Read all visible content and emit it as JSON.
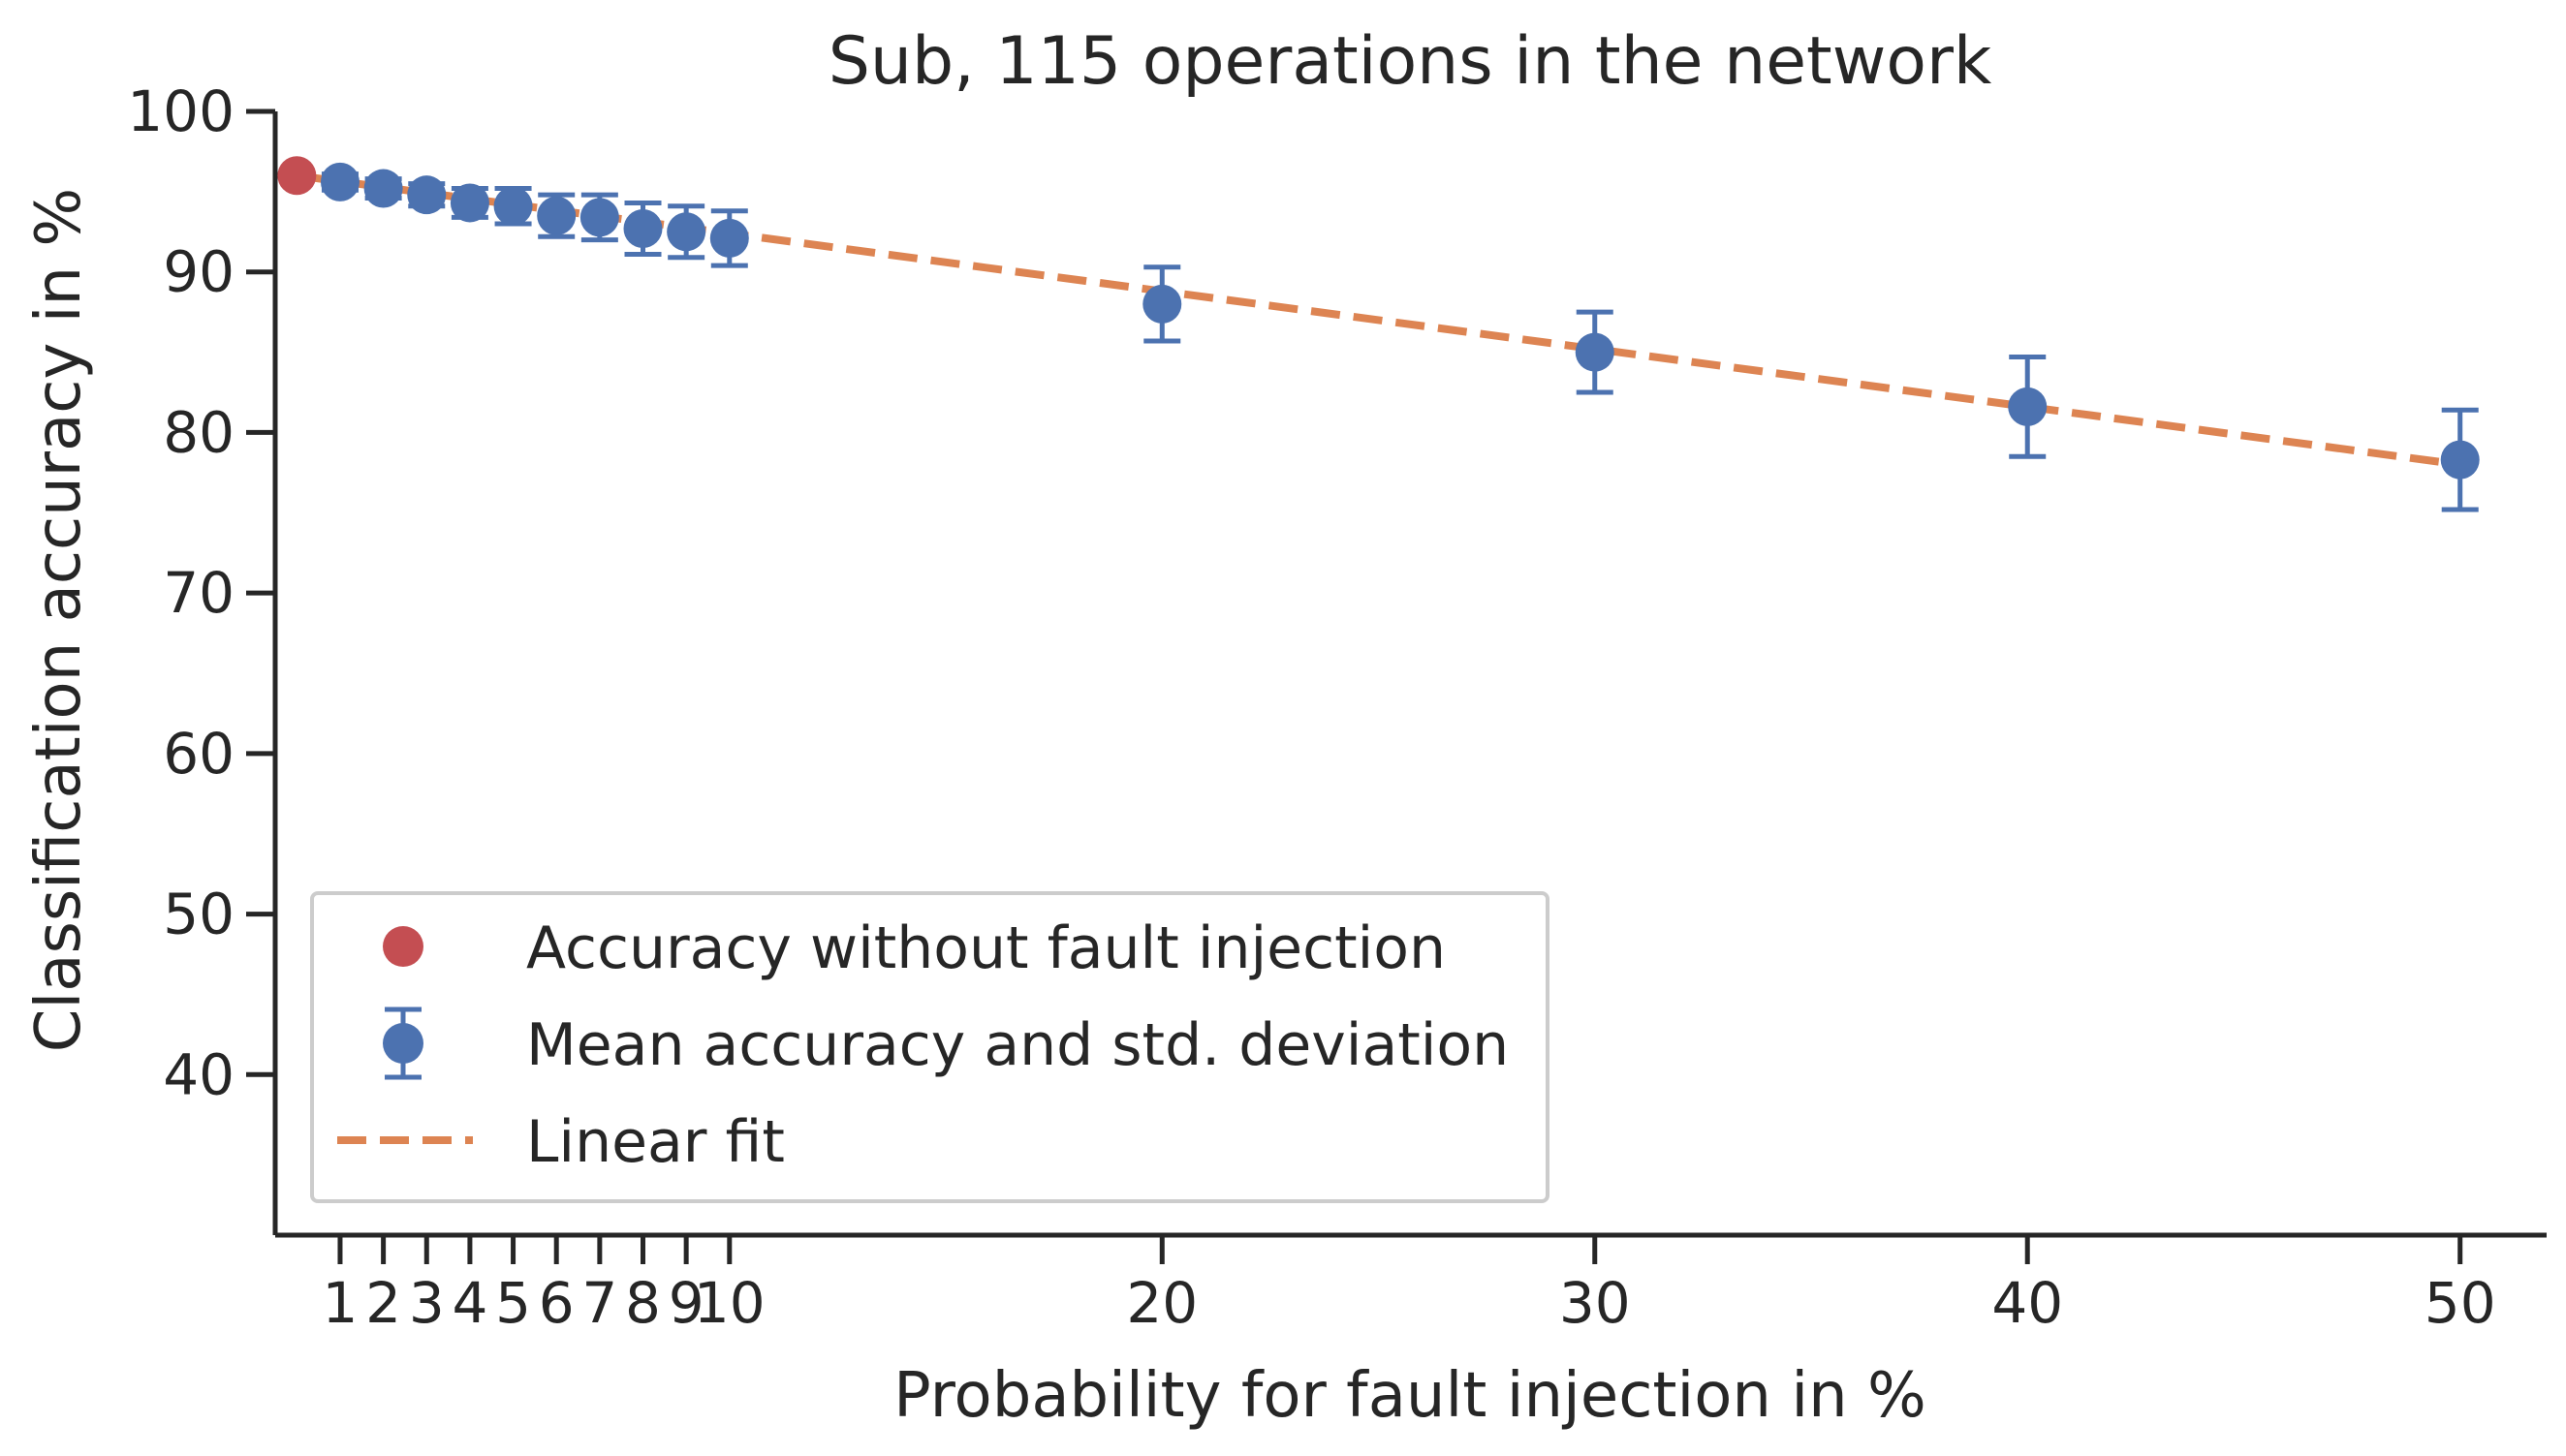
{
  "chart_data": {
    "type": "scatter",
    "title": "Sub, 115 operations in the network",
    "xlabel": "Probability for fault injection in %",
    "ylabel": "Classification accuracy in %",
    "xlim": [
      -0.5,
      52
    ],
    "ylim": [
      30,
      100
    ],
    "x_ticks": [
      1,
      2,
      3,
      4,
      5,
      6,
      7,
      8,
      9,
      10,
      20,
      30,
      40,
      50
    ],
    "x_tick_labels": [
      "1",
      "2",
      "3",
      "4",
      "5",
      "6",
      "7",
      "8",
      "9",
      "10",
      "20",
      "30",
      "40",
      "50"
    ],
    "y_ticks": [
      40,
      50,
      60,
      70,
      80,
      90,
      100
    ],
    "y_tick_labels": [
      "40",
      "50",
      "60",
      "70",
      "80",
      "90",
      "100"
    ],
    "grid": false,
    "legend_position": "lower-left",
    "colors": {
      "baseline": "#c44e52",
      "mean": "#4c72b0",
      "fit": "#dd8452",
      "axis": "#262626"
    },
    "series": [
      {
        "name": "Accuracy without fault injection",
        "kind": "point",
        "x": [
          0
        ],
        "y": [
          96.0
        ]
      },
      {
        "name": "Mean accuracy and std. deviation",
        "kind": "errorbar",
        "x": [
          1,
          2,
          3,
          4,
          5,
          6,
          7,
          8,
          9,
          10,
          20,
          30,
          40,
          50
        ],
        "y": [
          95.6,
          95.2,
          94.8,
          94.3,
          94.1,
          93.5,
          93.4,
          92.7,
          92.5,
          92.1,
          88.0,
          85.0,
          81.6,
          78.3
        ],
        "std": [
          0.5,
          0.6,
          0.7,
          0.9,
          1.1,
          1.3,
          1.4,
          1.6,
          1.6,
          1.7,
          2.3,
          2.5,
          3.1,
          3.1
        ]
      },
      {
        "name": "Linear fit",
        "kind": "line",
        "x": [
          0,
          50
        ],
        "y": [
          96.0,
          78.0
        ]
      }
    ]
  }
}
